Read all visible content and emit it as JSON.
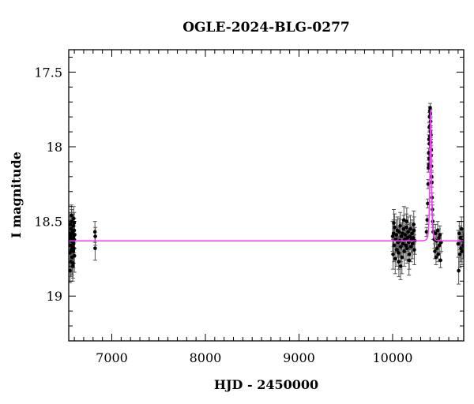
{
  "chart_data": {
    "type": "scatter",
    "title": "OGLE-2024-BLG-0277",
    "xlabel": "HJD - 2450000",
    "ylabel": "I magnitude",
    "xlim": [
      6540,
      10760
    ],
    "ylim": [
      19.3,
      17.35
    ],
    "y_inverted": true,
    "grid": false,
    "x_ticks": [
      7000,
      8000,
      9000,
      10000
    ],
    "x_tick_labels": [
      "7000",
      "8000",
      "9000",
      "10000"
    ],
    "y_ticks": [
      17.5,
      18,
      18.5,
      19
    ],
    "y_tick_labels": [
      "17.5",
      "18",
      "18.5",
      "19"
    ],
    "colors": {
      "points": "#000000",
      "model": "#ff33ff"
    },
    "model": {
      "baseline_mag": 18.63,
      "peak_hjd": 10407,
      "peak_mag": 17.75
    },
    "series": [
      {
        "type": "scatter_errorbars",
        "points": [
          [
            6548,
            18.58,
            0.09
          ],
          [
            6552,
            18.71,
            0.1
          ],
          [
            6555,
            18.52,
            0.08
          ],
          [
            6558,
            18.66,
            0.12
          ],
          [
            6561,
            18.6,
            0.09
          ],
          [
            6564,
            18.77,
            0.1
          ],
          [
            6566,
            18.55,
            0.08
          ],
          [
            6569,
            18.69,
            0.11
          ],
          [
            6571,
            18.63,
            0.09
          ],
          [
            6573,
            18.5,
            0.08
          ],
          [
            6575,
            18.74,
            0.12
          ],
          [
            6577,
            18.61,
            0.09
          ],
          [
            6579,
            18.67,
            0.1
          ],
          [
            6581,
            18.57,
            0.08
          ],
          [
            6583,
            18.8,
            0.1
          ],
          [
            6585,
            18.64,
            0.09
          ],
          [
            6587,
            18.53,
            0.08
          ],
          [
            6589,
            18.7,
            0.11
          ],
          [
            6591,
            18.6,
            0.09
          ],
          [
            6593,
            18.48,
            0.08
          ],
          [
            6595,
            18.68,
            0.1
          ],
          [
            6597,
            18.62,
            0.09
          ],
          [
            6599,
            18.56,
            0.08
          ],
          [
            6601,
            18.73,
            0.11
          ],
          [
            6603,
            18.59,
            0.09
          ],
          [
            6554,
            18.83,
            0.08
          ],
          [
            6568,
            18.46,
            0.07
          ],
          [
            6586,
            18.78,
            0.1
          ],
          [
            6598,
            18.51,
            0.07
          ],
          [
            6560,
            18.62,
            0.09
          ],
          [
            6574,
            18.58,
            0.08
          ],
          [
            6592,
            18.65,
            0.09
          ],
          [
            6820,
            18.57,
            0.07
          ],
          [
            6822,
            18.68,
            0.08
          ],
          [
            6824,
            18.6,
            0.06
          ],
          [
            10000,
            18.6,
            0.1
          ],
          [
            10005,
            18.72,
            0.1
          ],
          [
            10010,
            18.58,
            0.09
          ],
          [
            10016,
            18.66,
            0.11
          ],
          [
            10022,
            18.54,
            0.09
          ],
          [
            10028,
            18.75,
            0.1
          ],
          [
            10034,
            18.62,
            0.09
          ],
          [
            10040,
            18.59,
            0.1
          ],
          [
            10046,
            18.69,
            0.11
          ],
          [
            10052,
            18.56,
            0.09
          ],
          [
            10058,
            18.64,
            0.1
          ],
          [
            10064,
            18.71,
            0.11
          ],
          [
            10070,
            18.57,
            0.09
          ],
          [
            10076,
            18.63,
            0.1
          ],
          [
            10082,
            18.53,
            0.09
          ],
          [
            10088,
            18.67,
            0.1
          ],
          [
            10094,
            18.6,
            0.09
          ],
          [
            10100,
            18.74,
            0.11
          ],
          [
            10106,
            18.58,
            0.09
          ],
          [
            10112,
            18.65,
            0.1
          ],
          [
            10118,
            18.55,
            0.09
          ],
          [
            10124,
            18.7,
            0.1
          ],
          [
            10130,
            18.62,
            0.09
          ],
          [
            10136,
            18.59,
            0.1
          ],
          [
            10142,
            18.66,
            0.1
          ],
          [
            10148,
            18.54,
            0.09
          ],
          [
            10154,
            18.68,
            0.1
          ],
          [
            10160,
            18.61,
            0.09
          ],
          [
            10166,
            18.57,
            0.1
          ],
          [
            10172,
            18.64,
            0.09
          ],
          [
            10178,
            18.72,
            0.1
          ],
          [
            10184,
            18.6,
            0.09
          ],
          [
            10190,
            18.55,
            0.09
          ],
          [
            10196,
            18.67,
            0.1
          ],
          [
            10202,
            18.62,
            0.09
          ],
          [
            10208,
            18.58,
            0.09
          ],
          [
            10214,
            18.65,
            0.1
          ],
          [
            10220,
            18.61,
            0.09
          ],
          [
            10226,
            18.52,
            0.09
          ],
          [
            10232,
            18.69,
            0.1
          ],
          [
            10238,
            18.63,
            0.09
          ],
          [
            10013,
            18.51,
            0.09
          ],
          [
            10067,
            18.77,
            0.1
          ],
          [
            10121,
            18.49,
            0.09
          ],
          [
            10175,
            18.76,
            0.1
          ],
          [
            10229,
            18.56,
            0.09
          ],
          [
            10085,
            18.8,
            0.09
          ],
          [
            10151,
            18.5,
            0.09
          ],
          [
            10363,
            18.57,
            0.03
          ],
          [
            10370,
            18.49,
            0.03
          ],
          [
            10376,
            18.38,
            0.03
          ],
          [
            10380,
            18.25,
            0.03
          ],
          [
            10383,
            18.14,
            0.03
          ],
          [
            10386,
            18.04,
            0.03
          ],
          [
            10389,
            17.95,
            0.03
          ],
          [
            10392,
            17.87,
            0.03
          ],
          [
            10395,
            17.8,
            0.03
          ],
          [
            10398,
            17.76,
            0.03
          ],
          [
            10401,
            17.74,
            0.03
          ],
          [
            10404,
            17.78,
            0.03
          ],
          [
            10407,
            17.83,
            0.03
          ],
          [
            10410,
            17.92,
            0.03
          ],
          [
            10413,
            18.02,
            0.03
          ],
          [
            10416,
            18.13,
            0.03
          ],
          [
            10419,
            18.24,
            0.03
          ],
          [
            10422,
            18.34,
            0.03
          ],
          [
            10425,
            18.42,
            0.03
          ],
          [
            10429,
            18.5,
            0.04
          ],
          [
            10434,
            18.57,
            0.05
          ],
          [
            10393,
            17.98,
            0.03
          ],
          [
            10399,
            17.86,
            0.03
          ],
          [
            10405,
            17.9,
            0.03
          ],
          [
            10411,
            18.06,
            0.03
          ],
          [
            10387,
            18.12,
            0.03
          ],
          [
            10417,
            18.2,
            0.03
          ],
          [
            10396,
            17.93,
            0.03
          ],
          [
            10408,
            17.97,
            0.03
          ],
          [
            10390,
            18.08,
            0.03
          ],
          [
            10445,
            18.62,
            0.06
          ],
          [
            10452,
            18.7,
            0.05
          ],
          [
            10458,
            18.58,
            0.06
          ],
          [
            10464,
            18.74,
            0.05
          ],
          [
            10470,
            18.63,
            0.06
          ],
          [
            10476,
            18.68,
            0.05
          ],
          [
            10482,
            18.56,
            0.06
          ],
          [
            10488,
            18.72,
            0.05
          ],
          [
            10494,
            18.61,
            0.06
          ],
          [
            10500,
            18.66,
            0.05
          ],
          [
            10506,
            18.59,
            0.06
          ],
          [
            10512,
            18.76,
            0.05
          ],
          [
            10518,
            18.64,
            0.06
          ],
          [
            10700,
            18.65,
            0.09
          ],
          [
            10706,
            18.83,
            0.09
          ],
          [
            10712,
            18.58,
            0.08
          ],
          [
            10718,
            18.72,
            0.09
          ],
          [
            10724,
            18.61,
            0.08
          ],
          [
            10730,
            18.68,
            0.09
          ],
          [
            10736,
            18.55,
            0.08
          ],
          [
            10742,
            18.7,
            0.09
          ],
          [
            10748,
            18.63,
            0.08
          ],
          [
            10754,
            18.66,
            0.09
          ]
        ]
      }
    ]
  }
}
